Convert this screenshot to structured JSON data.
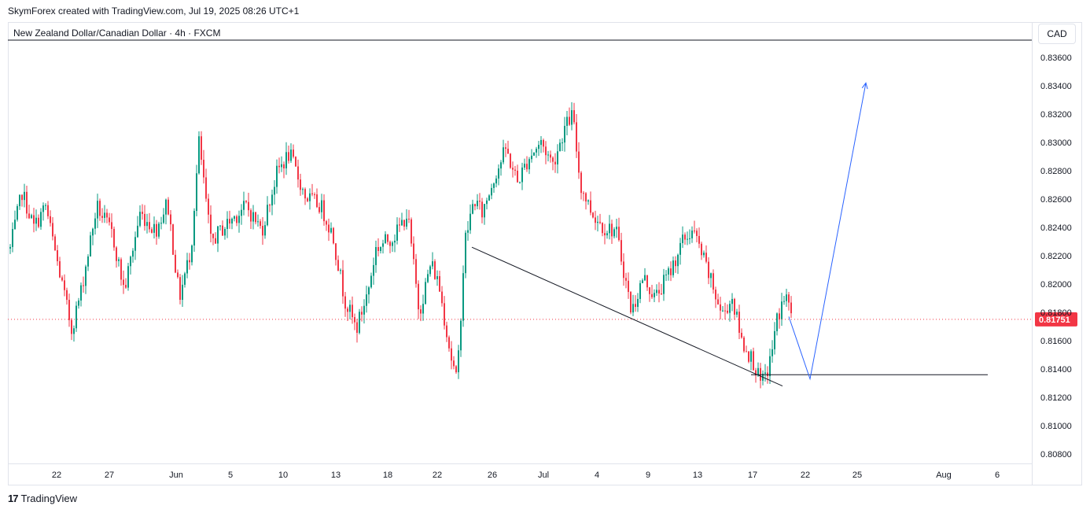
{
  "header": {
    "attribution": "SkymForex created with TradingView.com, Jul 19, 2025 08:26 UTC+1",
    "symbol_line": "New Zealand Dollar/Canadian Dollar · 4h · FXCM",
    "currency": "CAD"
  },
  "footer": {
    "logo_text": "TradingView"
  },
  "chart_data": {
    "type": "candlestick",
    "symbol": "NZDCAD",
    "timeframe": "4h",
    "price_axis": {
      "ticks": [
        "0.83600",
        "0.83400",
        "0.83200",
        "0.83000",
        "0.82800",
        "0.82600",
        "0.82400",
        "0.82200",
        "0.82000",
        "0.81800",
        "0.81600",
        "0.81400",
        "0.81200",
        "0.81000",
        "0.80800"
      ],
      "range": [
        0.8076,
        0.8376
      ]
    },
    "time_axis": {
      "labels": [
        "22",
        "27",
        "Jun",
        "5",
        "10",
        "13",
        "18",
        "22",
        "26",
        "Jul",
        "4",
        "9",
        "13",
        "17",
        "22",
        "25",
        "Aug",
        "6"
      ]
    },
    "last_price": {
      "value": 0.81751,
      "label": "0.81751",
      "color": "#f23645"
    },
    "colors": {
      "up": "#089981",
      "down": "#f23645",
      "projection": "#2962ff",
      "lines": "#131722"
    },
    "anchors": [
      {
        "x": 0,
        "v": 0.8225
      },
      {
        "x": 15,
        "v": 0.8265
      },
      {
        "x": 30,
        "v": 0.824
      },
      {
        "x": 45,
        "v": 0.8255
      },
      {
        "x": 60,
        "v": 0.8215
      },
      {
        "x": 78,
        "v": 0.8168
      },
      {
        "x": 90,
        "v": 0.8195
      },
      {
        "x": 110,
        "v": 0.8255
      },
      {
        "x": 130,
        "v": 0.8235
      },
      {
        "x": 145,
        "v": 0.8195
      },
      {
        "x": 165,
        "v": 0.825
      },
      {
        "x": 185,
        "v": 0.8238
      },
      {
        "x": 200,
        "v": 0.8258
      },
      {
        "x": 215,
        "v": 0.819
      },
      {
        "x": 230,
        "v": 0.8225
      },
      {
        "x": 240,
        "v": 0.83
      },
      {
        "x": 255,
        "v": 0.823
      },
      {
        "x": 280,
        "v": 0.8245
      },
      {
        "x": 300,
        "v": 0.8255
      },
      {
        "x": 320,
        "v": 0.8238
      },
      {
        "x": 340,
        "v": 0.828
      },
      {
        "x": 355,
        "v": 0.8292
      },
      {
        "x": 375,
        "v": 0.8262
      },
      {
        "x": 395,
        "v": 0.8255
      },
      {
        "x": 410,
        "v": 0.8235
      },
      {
        "x": 425,
        "v": 0.819
      },
      {
        "x": 440,
        "v": 0.8168
      },
      {
        "x": 455,
        "v": 0.8195
      },
      {
        "x": 465,
        "v": 0.8225
      },
      {
        "x": 490,
        "v": 0.8235
      },
      {
        "x": 505,
        "v": 0.825
      },
      {
        "x": 520,
        "v": 0.818
      },
      {
        "x": 535,
        "v": 0.8215
      },
      {
        "x": 545,
        "v": 0.82
      },
      {
        "x": 560,
        "v": 0.815
      },
      {
        "x": 568,
        "v": 0.813
      },
      {
        "x": 578,
        "v": 0.823
      },
      {
        "x": 590,
        "v": 0.826
      },
      {
        "x": 600,
        "v": 0.825
      },
      {
        "x": 615,
        "v": 0.8275
      },
      {
        "x": 630,
        "v": 0.8295
      },
      {
        "x": 645,
        "v": 0.8272
      },
      {
        "x": 660,
        "v": 0.829
      },
      {
        "x": 675,
        "v": 0.83
      },
      {
        "x": 690,
        "v": 0.8285
      },
      {
        "x": 705,
        "v": 0.831
      },
      {
        "x": 715,
        "v": 0.832
      },
      {
        "x": 725,
        "v": 0.827
      },
      {
        "x": 740,
        "v": 0.825
      },
      {
        "x": 755,
        "v": 0.824
      },
      {
        "x": 770,
        "v": 0.8238
      },
      {
        "x": 780,
        "v": 0.821
      },
      {
        "x": 790,
        "v": 0.818
      },
      {
        "x": 805,
        "v": 0.8205
      },
      {
        "x": 820,
        "v": 0.819
      },
      {
        "x": 840,
        "v": 0.821
      },
      {
        "x": 855,
        "v": 0.823
      },
      {
        "x": 868,
        "v": 0.8238
      },
      {
        "x": 880,
        "v": 0.822
      },
      {
        "x": 895,
        "v": 0.8195
      },
      {
        "x": 905,
        "v": 0.8178
      },
      {
        "x": 918,
        "v": 0.819
      },
      {
        "x": 930,
        "v": 0.816
      },
      {
        "x": 945,
        "v": 0.8145
      },
      {
        "x": 955,
        "v": 0.8128
      },
      {
        "x": 965,
        "v": 0.8142
      },
      {
        "x": 975,
        "v": 0.8175
      },
      {
        "x": 985,
        "v": 0.8192
      },
      {
        "x": 995,
        "v": 0.8178
      }
    ],
    "annotations": [
      {
        "type": "trendline",
        "from": {
          "bar": "2025-06-24",
          "price": 0.8226
        },
        "to": {
          "bar": "2025-07-18",
          "price": 0.8128
        }
      },
      {
        "type": "horizontal_ray",
        "price": 0.8136,
        "from": "2025-07-17"
      },
      {
        "type": "projection_path",
        "points": [
          {
            "price": 0.8177
          },
          {
            "price": 0.8133
          },
          {
            "price": 0.8342
          }
        ]
      }
    ]
  }
}
